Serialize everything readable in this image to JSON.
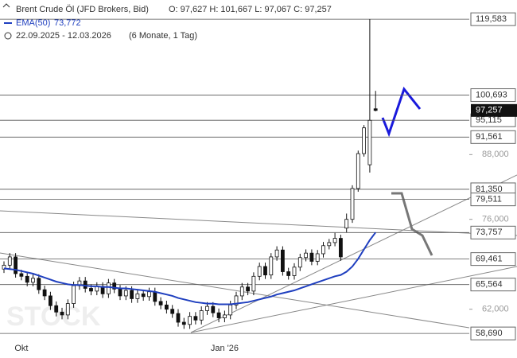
{
  "chart_data": {
    "type": "candlestick",
    "title": "Brent Crude Öl (JFD Brokers, Bid)",
    "ohlc_text": "O: 97,627   H: 101,667   L: 97,067   C: 97,257",
    "date_range": "22.09.2025 - 12.03.2026",
    "period": "(6 Monate, 1 Tag)",
    "watermark": "STOCK",
    "log_scale": true,
    "ylim": [
      57.76,
      124.9
    ],
    "yticks": [
      {
        "value": 62,
        "label": "62,000"
      },
      {
        "value": 76,
        "label": "76,000"
      },
      {
        "value": 88,
        "label": "88,000"
      }
    ],
    "levels": [
      {
        "value": 119.583,
        "label": "119,583"
      },
      {
        "value": 100.693,
        "label": "100,693"
      },
      {
        "value": 95.115,
        "label": "95,115"
      },
      {
        "value": 91.561,
        "label": "91,561"
      },
      {
        "value": 81.35,
        "label": "81,350"
      },
      {
        "value": 79.511,
        "label": "79,511"
      },
      {
        "value": 73.757,
        "label": "73,757"
      },
      {
        "value": 69.461,
        "label": "69,461"
      },
      {
        "value": 65.564,
        "label": "65,564"
      },
      {
        "value": 58.69,
        "label": "58,690"
      }
    ],
    "last_price": {
      "value": 97.257,
      "label": "97,257"
    },
    "candle_color": "#111111",
    "categories": [
      null,
      null,
      null,
      "Okt",
      null,
      null,
      null,
      null,
      null,
      null,
      null,
      null,
      null,
      null,
      null,
      null,
      null,
      null,
      null,
      null,
      null,
      null,
      null,
      null,
      null,
      null,
      null,
      null,
      null,
      null,
      null,
      null,
      null,
      null,
      null,
      null,
      null,
      null,
      "Jan '26",
      null,
      null,
      null,
      null,
      null,
      null,
      null,
      null,
      null,
      null,
      null,
      null,
      null,
      null,
      null,
      null,
      null,
      null,
      null,
      null,
      null,
      null,
      null,
      null,
      null,
      null
    ],
    "open": [
      67.9,
      68.5,
      69.8,
      67.2,
      66.8,
      65.9,
      66.5,
      64.8,
      63.9,
      62.5,
      61.6,
      61.2,
      62.8,
      65.4,
      66.1,
      65.0,
      64.6,
      65.3,
      64.2,
      65.8,
      64.9,
      63.9,
      64.7,
      63.5,
      64.2,
      63.8,
      64.5,
      63.1,
      62.6,
      62.0,
      61.4,
      60.2,
      59.9,
      61.0,
      60.5,
      61.8,
      62.4,
      61.5,
      60.8,
      61.2,
      62.6,
      63.9,
      65.2,
      64.6,
      66.8,
      68.3,
      67.0,
      69.8,
      70.9,
      67.5,
      66.9,
      68.2,
      69.7,
      70.4,
      69.1,
      70.3,
      71.6,
      72.1,
      72.8,
      74.5,
      76.0,
      81.5,
      88.2,
      86.0,
      97.627
    ],
    "high": [
      69.1,
      70.4,
      70.4,
      67.8,
      67.4,
      67.1,
      67.1,
      65.4,
      64.5,
      63.1,
      62.2,
      63.4,
      66.0,
      66.7,
      66.7,
      65.6,
      65.9,
      65.9,
      66.4,
      66.4,
      65.5,
      65.3,
      65.3,
      64.8,
      64.8,
      65.1,
      65.1,
      63.7,
      63.2,
      62.6,
      62.0,
      60.8,
      61.6,
      61.6,
      62.4,
      63.0,
      63.0,
      62.1,
      61.8,
      63.2,
      64.5,
      65.8,
      65.8,
      67.4,
      68.9,
      68.9,
      70.4,
      71.5,
      71.5,
      68.1,
      68.8,
      70.3,
      71.0,
      71.0,
      70.9,
      72.2,
      72.7,
      73.7,
      73.4,
      77.0,
      82.1,
      88.8,
      94.1,
      119.583,
      101.667
    ],
    "low": [
      67.3,
      67.9,
      66.6,
      66.2,
      65.3,
      65.3,
      64.2,
      63.3,
      61.9,
      61.0,
      60.6,
      60.6,
      62.2,
      64.8,
      64.4,
      64.0,
      64.0,
      63.6,
      63.6,
      64.3,
      63.3,
      63.3,
      62.9,
      62.9,
      63.2,
      63.2,
      62.5,
      62.0,
      61.4,
      60.8,
      59.6,
      59.3,
      59.3,
      59.9,
      59.9,
      61.2,
      60.9,
      60.2,
      60.2,
      60.6,
      62.0,
      63.3,
      64.0,
      64.0,
      66.2,
      66.4,
      66.4,
      69.2,
      66.9,
      66.3,
      66.3,
      67.6,
      69.1,
      68.5,
      68.5,
      69.7,
      71.0,
      71.5,
      69.2,
      73.8,
      75.4,
      80.9,
      87.6,
      84.5,
      97.067
    ],
    "close": [
      68.5,
      69.8,
      67.2,
      66.8,
      65.9,
      66.5,
      64.8,
      63.9,
      62.5,
      61.6,
      61.2,
      62.8,
      65.4,
      66.1,
      65.0,
      64.6,
      65.3,
      64.2,
      65.8,
      64.9,
      63.9,
      64.7,
      63.5,
      64.2,
      63.8,
      64.5,
      63.1,
      62.6,
      62.0,
      61.4,
      60.2,
      59.9,
      61.0,
      60.5,
      61.8,
      62.4,
      61.5,
      60.8,
      61.2,
      62.6,
      63.9,
      65.2,
      64.6,
      66.8,
      68.3,
      67.0,
      69.8,
      70.9,
      67.5,
      66.9,
      68.2,
      69.7,
      70.4,
      69.1,
      70.3,
      71.6,
      72.1,
      72.8,
      69.8,
      76.0,
      81.5,
      88.2,
      93.5,
      95.1,
      97.257
    ],
    "series": [
      {
        "name": "EMA(50)",
        "last_label": "73,772",
        "color": "#1f3fbf",
        "values": [
          68.0,
          67.9,
          67.8,
          67.6,
          67.4,
          67.2,
          66.9,
          66.6,
          66.3,
          66.0,
          65.8,
          65.6,
          65.5,
          65.5,
          65.4,
          65.3,
          65.3,
          65.2,
          65.2,
          65.1,
          65.0,
          65.0,
          64.9,
          64.8,
          64.7,
          64.6,
          64.5,
          64.3,
          64.1,
          63.9,
          63.6,
          63.4,
          63.2,
          63.0,
          62.9,
          62.8,
          62.8,
          62.7,
          62.7,
          62.7,
          62.8,
          62.9,
          63.0,
          63.2,
          63.4,
          63.6,
          63.8,
          64.1,
          64.3,
          64.5,
          64.7,
          65.0,
          65.3,
          65.6,
          65.9,
          66.2,
          66.5,
          66.8,
          67.0,
          67.5,
          68.3,
          69.5,
          71.0,
          72.5,
          73.772
        ]
      }
    ]
  }
}
